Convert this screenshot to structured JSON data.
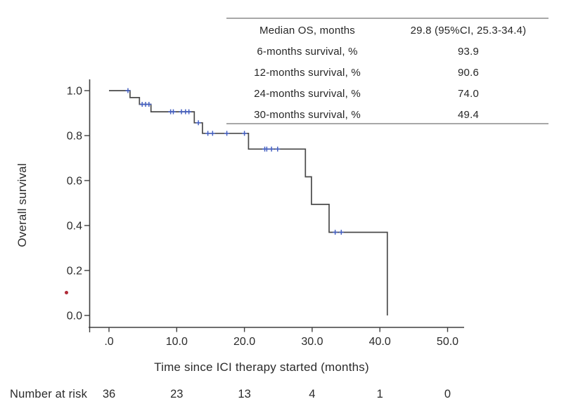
{
  "figure": {
    "x_axis_title": "Time since ICI therapy started (months)",
    "y_axis_title": "Overall survival"
  },
  "stats_table": {
    "rows": [
      {
        "label": "Median OS, months",
        "value": "29.8 (95%CI, 25.3-34.4)"
      },
      {
        "label": "6-months survival, %",
        "value": "93.9"
      },
      {
        "label": "12-months survival, %",
        "value": "90.6"
      },
      {
        "label": "24-months survival, %",
        "value": "74.0"
      },
      {
        "label": "30-months survival, %",
        "value": "49.4"
      }
    ]
  },
  "risk_table": {
    "label": "Number at risk",
    "counts": [
      "36",
      "23",
      "13",
      "4",
      "1",
      "0"
    ]
  },
  "chart_data": {
    "type": "line",
    "subtype": "kaplan-meier-step-curve",
    "title": "",
    "xlabel": "Time since ICI therapy started (months)",
    "ylabel": "Overall survival",
    "xlim": [
      0,
      50
    ],
    "ylim": [
      0.0,
      1.0
    ],
    "grid": false,
    "legend": "none",
    "xticks": {
      "values": [
        0,
        10,
        20,
        30,
        40,
        50
      ],
      "labels": [
        ".0",
        "10.0",
        "20.0",
        "30.0",
        "40.0",
        "50.0"
      ]
    },
    "yticks": {
      "values": [
        0.0,
        0.2,
        0.4,
        0.6,
        0.8,
        1.0
      ],
      "labels": [
        "0.0",
        "0.2",
        "0.4",
        "0.6",
        "0.8",
        "1.0"
      ]
    },
    "km_steps": {
      "comment": "values[i] holds from times[i] until times[i+1]; final value reached by vertical drop at last time",
      "times": [
        0,
        3.1,
        4.5,
        6.2,
        12.6,
        13.8,
        20.6,
        29.0,
        29.9,
        32.5,
        41.1
      ],
      "values": [
        1.0,
        0.969,
        0.939,
        0.906,
        0.857,
        0.81,
        0.74,
        0.617,
        0.494,
        0.37,
        0.0
      ]
    },
    "censor_marks": [
      [
        2.8,
        1.0
      ],
      [
        4.9,
        0.939
      ],
      [
        5.4,
        0.939
      ],
      [
        5.9,
        0.939
      ],
      [
        9.1,
        0.906
      ],
      [
        9.5,
        0.906
      ],
      [
        10.7,
        0.906
      ],
      [
        11.3,
        0.906
      ],
      [
        11.8,
        0.906
      ],
      [
        13.2,
        0.857
      ],
      [
        14.6,
        0.81
      ],
      [
        15.3,
        0.81
      ],
      [
        17.4,
        0.81
      ],
      [
        20.0,
        0.81
      ],
      [
        23.0,
        0.74
      ],
      [
        23.3,
        0.74
      ],
      [
        24.0,
        0.74
      ],
      [
        24.9,
        0.74
      ],
      [
        33.4,
        0.37
      ],
      [
        34.3,
        0.37
      ]
    ],
    "number_at_risk": {
      "times": [
        0,
        10,
        20,
        30,
        40,
        50
      ],
      "counts": [
        36,
        23,
        13,
        4,
        1,
        0
      ]
    },
    "summary_stats": {
      "median_os_months": 29.8,
      "median_os_ci95": "25.3-34.4",
      "survival_pct": {
        "6_months": 93.9,
        "12_months": 90.6,
        "24_months": 74.0,
        "30_months": 49.4
      }
    },
    "colors": {
      "curve": "#4a4a4a",
      "censor": "#4560c2",
      "axis": "#3f3f3f",
      "tick_text": "#2b2b2b",
      "table_rule": "#a8a8a8",
      "stray_dot": "#b02a37"
    }
  }
}
